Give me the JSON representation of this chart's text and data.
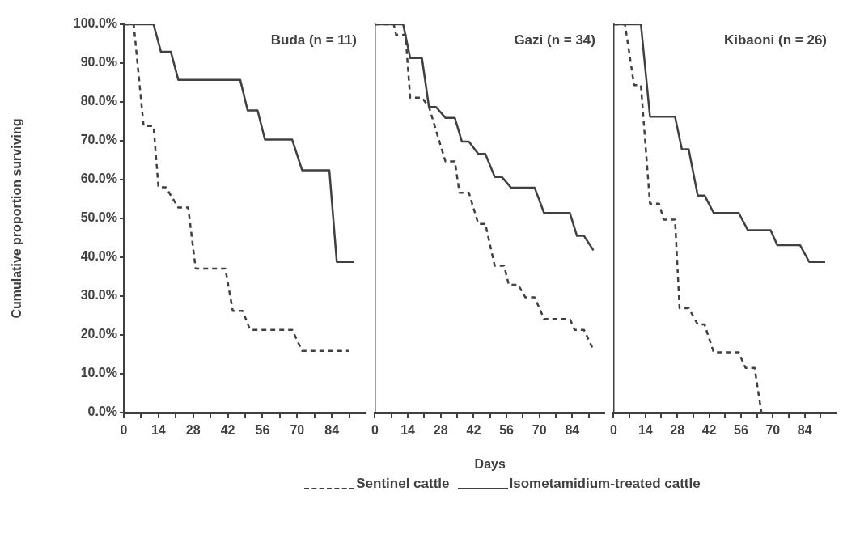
{
  "chart_data": [
    {
      "type": "line",
      "title": "Buda (n = 11)",
      "ylabel": "Cumulative proportion surviving",
      "xlim": [
        0,
        98
      ],
      "ylim": [
        0,
        100
      ],
      "xticks": [
        0,
        {
          "value": 7,
          "label": null
        },
        14,
        {
          "value": 21,
          "label": null
        },
        28,
        {
          "value": 35,
          "label": null
        },
        42,
        {
          "value": 49,
          "label": null
        },
        56,
        {
          "value": 63,
          "label": null
        },
        70,
        {
          "value": 77,
          "label": null
        },
        84,
        {
          "value": 91,
          "label": null
        }
      ],
      "yticks": [
        {
          "value": 0,
          "label": "0.0%"
        },
        {
          "value": 10,
          "label": "10.0%"
        },
        {
          "value": 20,
          "label": "20.0%"
        },
        {
          "value": 30,
          "label": "30.0%"
        },
        {
          "value": 40,
          "label": "40.0%"
        },
        {
          "value": 50,
          "label": "50.0%"
        },
        {
          "value": 60,
          "label": "60.0%"
        },
        {
          "value": 70,
          "label": "70.0%"
        },
        {
          "value": 80,
          "label": "80.0%"
        },
        {
          "value": 90,
          "label": "90.0%"
        },
        {
          "value": 100,
          "label": "100.0%"
        }
      ],
      "grid": false,
      "legend": "bottom",
      "marker": "none",
      "series": [
        {
          "name": "Sentinel cattle",
          "color": "#404040",
          "line_style": "dashed",
          "x": [
            0,
            4,
            8,
            12,
            14,
            17,
            22,
            26,
            29,
            41,
            44,
            48,
            51,
            68,
            72,
            91
          ],
          "values": [
            100,
            100,
            73.8,
            73.8,
            58,
            58,
            52.8,
            52.8,
            37.1,
            37.1,
            26.2,
            26.2,
            21.3,
            21.3,
            15.9,
            15.9
          ]
        },
        {
          "name": "Isometamidium-treated cattle",
          "color": "#404040",
          "line_style": "solid",
          "x": [
            0,
            12,
            15,
            19,
            22,
            47,
            50,
            54,
            57,
            68,
            72,
            83,
            86,
            93
          ],
          "values": [
            100,
            100,
            92.9,
            92.9,
            85.7,
            85.7,
            77.8,
            77.8,
            70.3,
            70.3,
            62.4,
            62.4,
            38.8,
            38.8
          ]
        }
      ]
    },
    {
      "type": "line",
      "title": "Gazi (n = 34)",
      "xlabel": "Days",
      "xlim": [
        0,
        98
      ],
      "ylim": [
        0,
        100
      ],
      "xticks": [
        0,
        {
          "value": 7,
          "label": null
        },
        14,
        {
          "value": 21,
          "label": null
        },
        28,
        {
          "value": 35,
          "label": null
        },
        42,
        {
          "value": 49,
          "label": null
        },
        56,
        {
          "value": 63,
          "label": null
        },
        70,
        {
          "value": 77,
          "label": null
        },
        84,
        {
          "value": 91,
          "label": null
        }
      ],
      "tick_labels": "x",
      "grid": false,
      "marker": "none",
      "series": [
        {
          "color": "#404040",
          "line_style": "dashed",
          "x": [
            0,
            8,
            9,
            13,
            15,
            20,
            23,
            30,
            34,
            36,
            40,
            44,
            47,
            51,
            55,
            57,
            61,
            64,
            68,
            72,
            83,
            85,
            89,
            93
          ],
          "values": [
            100,
            100,
            97.3,
            97.3,
            81.1,
            81.1,
            78.7,
            64.7,
            64.7,
            56.6,
            56.6,
            48.6,
            48.6,
            37.8,
            37.8,
            32.9,
            32.9,
            29.7,
            29.7,
            24.1,
            24.1,
            21.3,
            21.3,
            16.1
          ]
        },
        {
          "color": "#404040",
          "line_style": "solid",
          "x": [
            0,
            12,
            15,
            20,
            23,
            26,
            30,
            34,
            37,
            40,
            44,
            47,
            51,
            54,
            58,
            68,
            72,
            83,
            86,
            89,
            93
          ],
          "values": [
            100,
            100,
            91.3,
            91.3,
            78.7,
            78.7,
            75.9,
            75.9,
            69.8,
            69.8,
            66.6,
            66.6,
            60.7,
            60.7,
            57.9,
            57.9,
            51.4,
            51.4,
            45.5,
            45.5,
            41.8
          ]
        }
      ]
    },
    {
      "type": "line",
      "title": "Kibaoni (n = 26)",
      "xlim": [
        0,
        98
      ],
      "ylim": [
        0,
        100
      ],
      "xticks": [
        0,
        {
          "value": 7,
          "label": null
        },
        14,
        {
          "value": 21,
          "label": null
        },
        28,
        {
          "value": 35,
          "label": null
        },
        42,
        {
          "value": 49,
          "label": null
        },
        56,
        {
          "value": 63,
          "label": null
        },
        70,
        {
          "value": 77,
          "label": null
        },
        84,
        {
          "value": 91,
          "label": null
        }
      ],
      "tick_labels": "x",
      "grid": false,
      "marker": "none",
      "series": [
        {
          "color": "#404040",
          "line_style": "dashed",
          "x": [
            0,
            5,
            9,
            12,
            16,
            20,
            22,
            27,
            29,
            33,
            37,
            40,
            44,
            55,
            58,
            62,
            65
          ],
          "values": [
            100,
            100,
            84.3,
            84.3,
            53.8,
            53.8,
            49.7,
            49.7,
            26.9,
            26.9,
            22.7,
            22.7,
            15.5,
            15.5,
            11.5,
            11.5,
            0
          ]
        },
        {
          "color": "#404040",
          "line_style": "solid",
          "x": [
            0,
            12,
            16,
            27,
            30,
            33,
            37,
            40,
            44,
            55,
            59,
            69,
            72,
            82,
            86,
            93
          ],
          "values": [
            100,
            100,
            76.2,
            76.2,
            67.8,
            67.8,
            55.9,
            55.9,
            51.4,
            51.4,
            47,
            47,
            43.1,
            43.1,
            38.8,
            38.8
          ]
        }
      ]
    }
  ]
}
